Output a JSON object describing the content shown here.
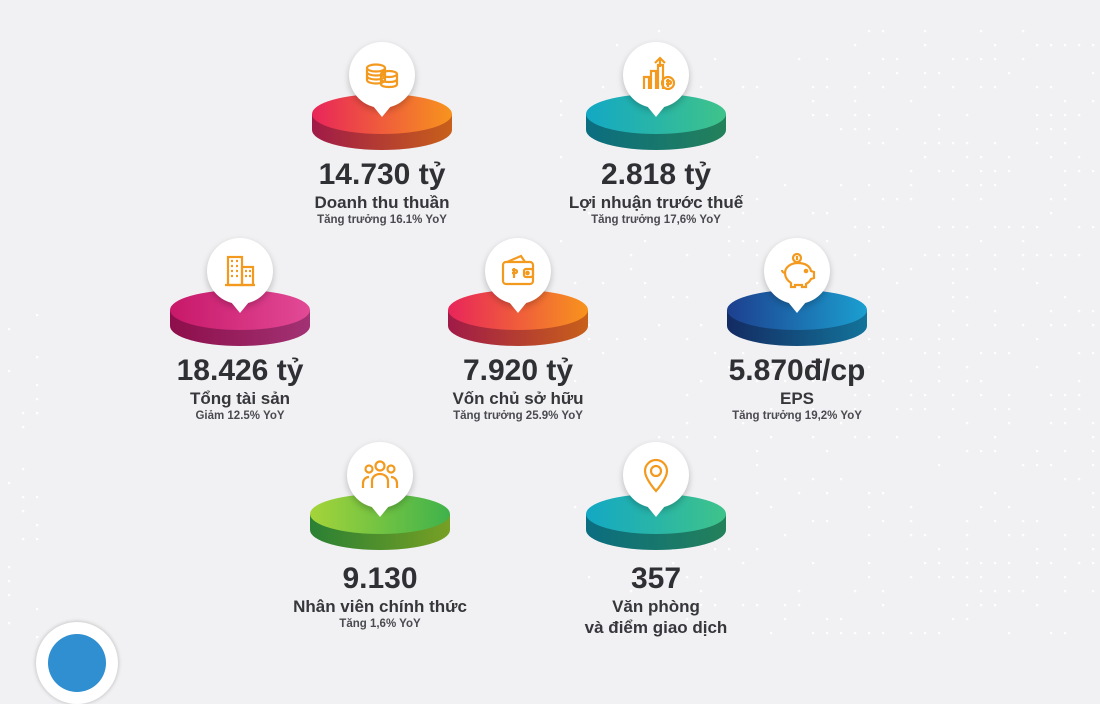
{
  "metrics": [
    {
      "value": "14.730 tỷ",
      "label": "Doanh thu thuần",
      "sub": "Tăng trưởng 16.1% YoY",
      "icon": "coins-icon",
      "color_light": "#f7941d",
      "color_dark": "#e8255a",
      "edge_dark": "#a01a48",
      "edge_light": "#c8601a"
    },
    {
      "value": "2.818 tỷ",
      "label": "Lợi nhuận trước thuế",
      "sub": "Tăng trưởng 17,6% YoY",
      "icon": "growth-chart-dollar-icon",
      "color_light": "#3fc38a",
      "color_dark": "#13a8c4",
      "edge_dark": "#0b6d80",
      "edge_light": "#23815a"
    },
    {
      "value": "18.426 tỷ",
      "label": "Tổng tài sản",
      "sub": "Giảm 12.5% YoY",
      "icon": "buildings-icon",
      "color_light": "#e24a96",
      "color_dark": "#c8186a",
      "edge_dark": "#8d0e4a",
      "edge_light": "#a23274"
    },
    {
      "value": "7.920 tỷ",
      "label": "Vốn chủ sở hữu",
      "sub": "Tăng trưởng 25.9% YoY",
      "icon": "wallet-icon",
      "color_light": "#f7941d",
      "color_dark": "#e8255a",
      "edge_dark": "#a01a48",
      "edge_light": "#c8601a"
    },
    {
      "value": "5.870đ/cp",
      "label": "EPS",
      "sub": "Tăng trưởng 19,2% YoY",
      "icon": "piggy-bank-icon",
      "color_light": "#1b9fd0",
      "color_dark": "#1d3f8e",
      "edge_dark": "#132b62",
      "edge_light": "#13739a"
    },
    {
      "value": "9.130",
      "label": "Nhân viên chính thức",
      "sub": "Tăng 1,6% YoY",
      "icon": "staff-people-icon",
      "color_light": "#3fb24b",
      "color_dark": "#a5d43a",
      "edge_dark": "#2a8034",
      "edge_light": "#77a024"
    },
    {
      "value": "357",
      "label": "Văn phòng",
      "label2": "và điểm giao dịch",
      "sub": "",
      "icon": "location-pin-icon",
      "color_light": "#3fc38a",
      "color_dark": "#13a8c4",
      "edge_dark": "#0b6d80",
      "edge_light": "#23815a"
    }
  ],
  "theme": {
    "icon_color": "#f39a1e",
    "badge_bg": "#ffffff",
    "background": "#f1f1f3"
  }
}
